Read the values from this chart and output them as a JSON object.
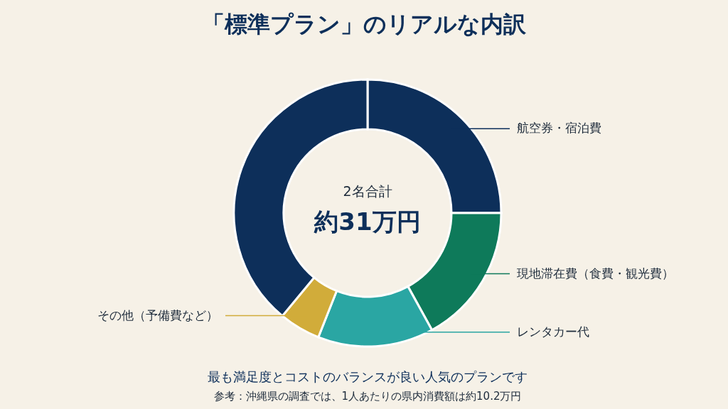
{
  "chart_data": {
    "type": "donut",
    "title": "「標準プラン」のリアルな内訳",
    "categories": [
      "航空券・宿泊費",
      "現地滞在費（食費・観光費）",
      "レンタカー代",
      "その他（予備費など）",
      null
    ],
    "values": [
      25,
      17,
      14,
      5,
      39
    ],
    "colors": [
      "#0d2f5a",
      "#0e7a5a",
      "#2aa6a3",
      "#d1ac3a",
      "#0d2f5a"
    ],
    "legend": false,
    "annotations": [
      "2名合計",
      "約31万円",
      "最も満足度とコストのバランスが良い人気のプランです",
      "参考：沖縄県の調査では、1人あたりの県内消費額は約10.2万円"
    ]
  }
}
